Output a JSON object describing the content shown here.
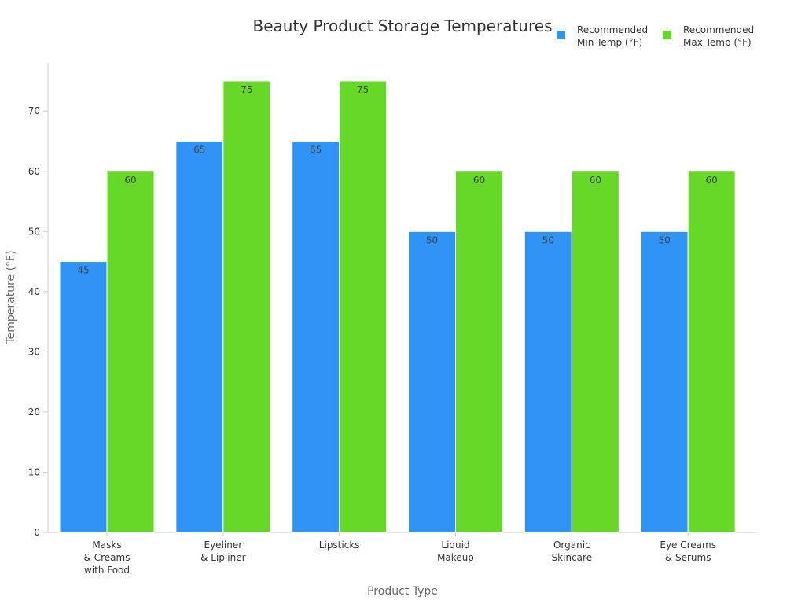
{
  "chart_data": {
    "type": "bar",
    "title": "Beauty Product Storage Temperatures",
    "xlabel": "Product Type",
    "ylabel": "Temperature (°F)",
    "ylim": [
      0,
      78
    ],
    "yticks": [
      0,
      10,
      20,
      30,
      40,
      50,
      60,
      70
    ],
    "categories": [
      [
        "Masks",
        "& Creams",
        "with Food"
      ],
      [
        "Eyeliner",
        "& Lipliner"
      ],
      [
        "Lipsticks"
      ],
      [
        "Liquid",
        "Makeup"
      ],
      [
        "Organic",
        "Skincare"
      ],
      [
        "Eye Creams",
        "& Serums"
      ]
    ],
    "series": [
      {
        "name": [
          "Recommended",
          "Min Temp (°F)"
        ],
        "color": "#3094f7",
        "values": [
          45,
          65,
          65,
          50,
          50,
          50
        ]
      },
      {
        "name": [
          "Recommended",
          "Max Temp (°F)"
        ],
        "color": "#66d928",
        "values": [
          60,
          75,
          75,
          60,
          60,
          60
        ]
      }
    ],
    "legend_position": "top-right",
    "grid": false
  }
}
